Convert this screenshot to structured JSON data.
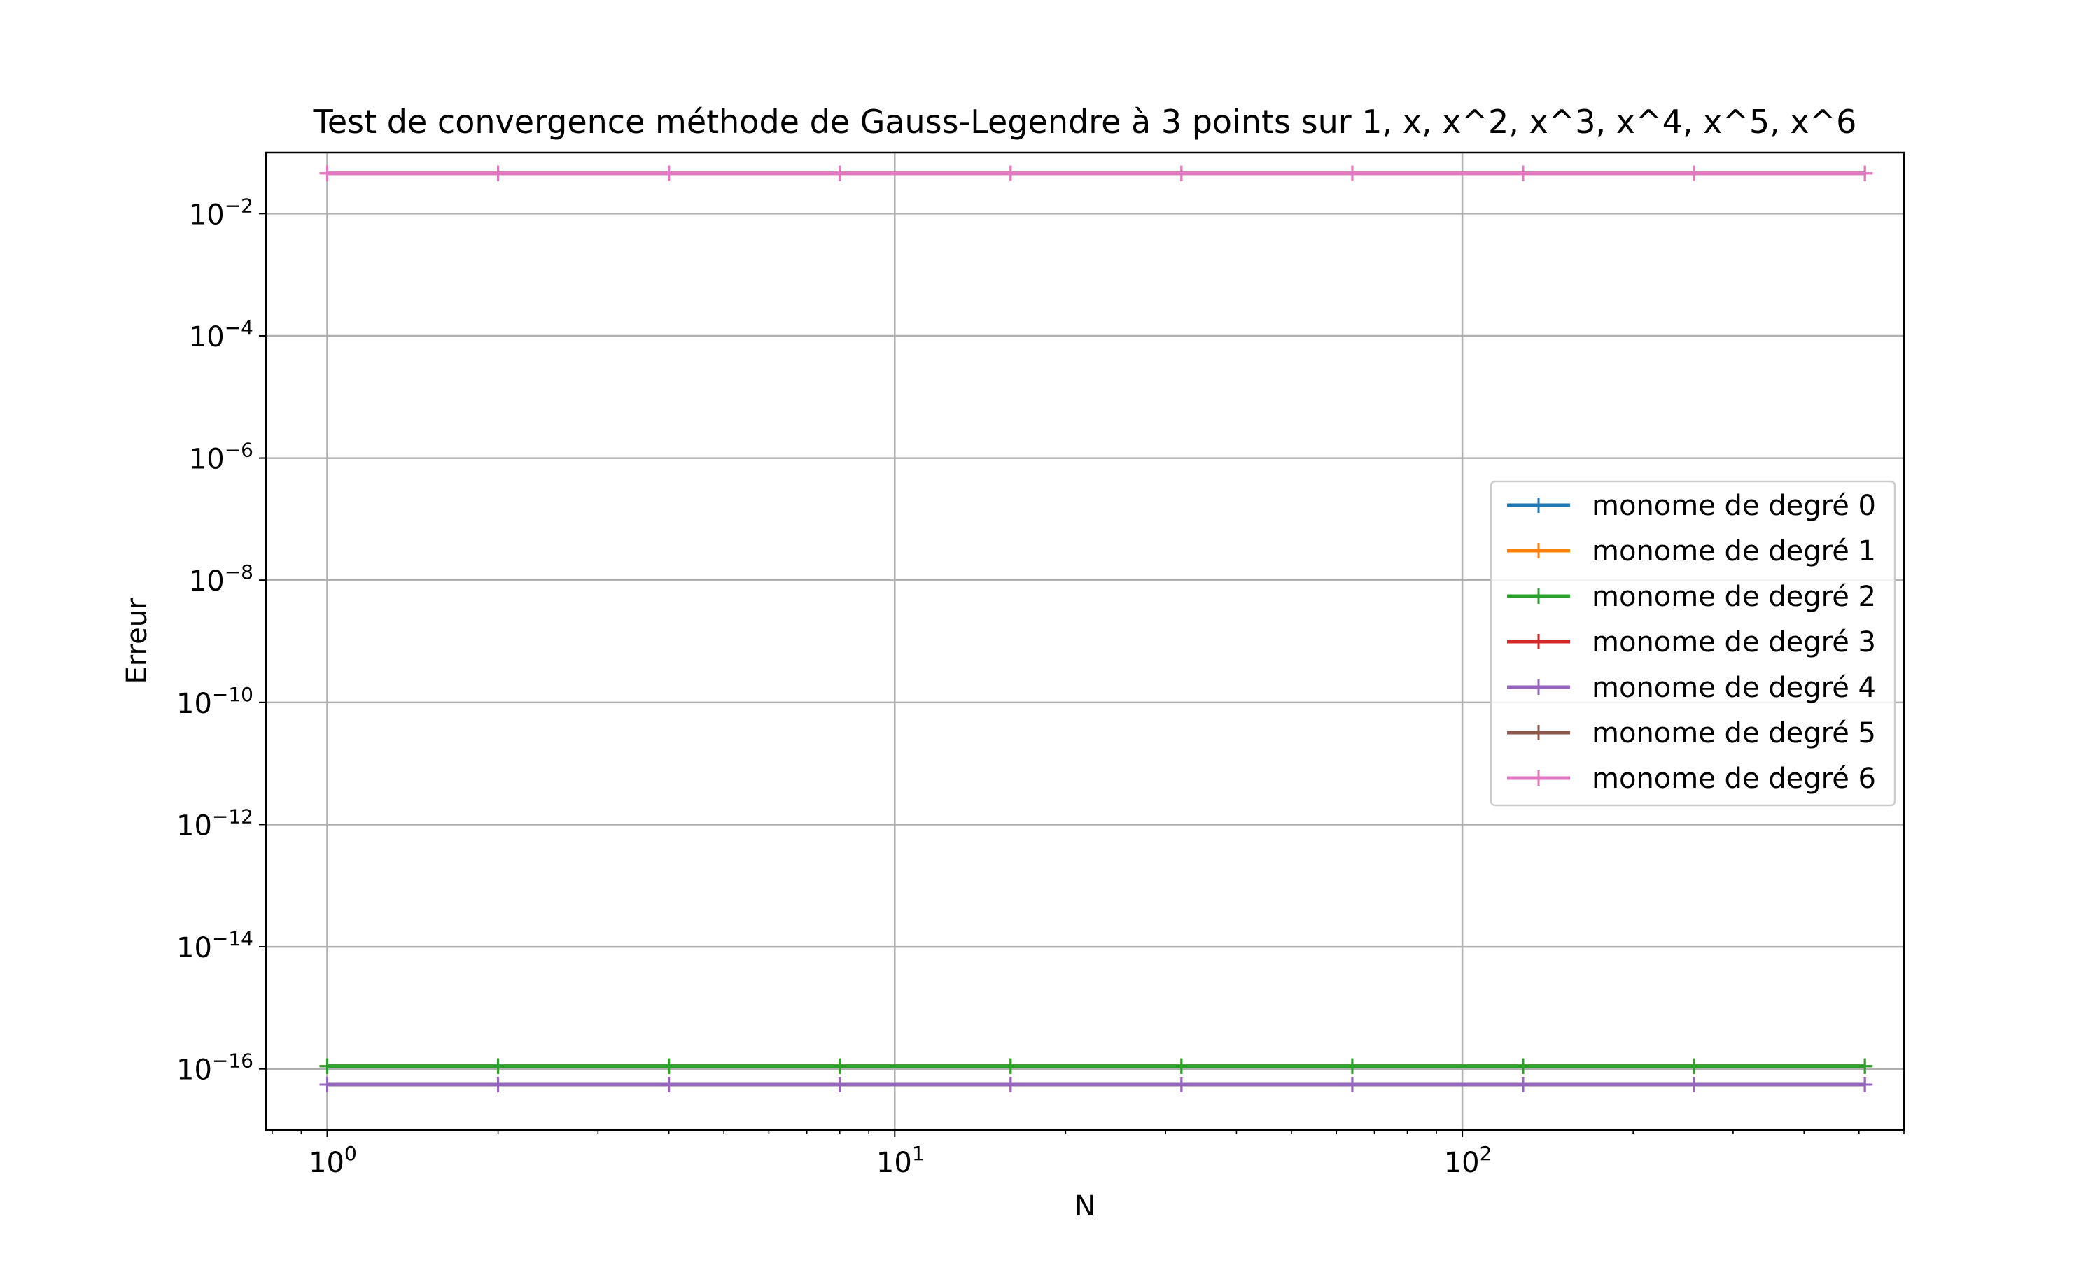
{
  "chart_data": {
    "type": "line",
    "title": "Test de convergence méthode de Gauss-Legendre à 3 points sur 1, x, x^2, x^3, x^4, x^5, x^6",
    "xlabel": "N",
    "ylabel": "Erreur",
    "xscale": "log",
    "yscale": "log",
    "xlim": [
      0.78,
      600
    ],
    "ylim": [
      1e-17,
      0.1
    ],
    "grid": true,
    "legend_position": "center-right",
    "marker": "+",
    "x": [
      1,
      2,
      4,
      8,
      16,
      32,
      64,
      128,
      256,
      512
    ],
    "x_ticks": [
      {
        "value": 1,
        "base": "10",
        "exp": "0"
      },
      {
        "value": 10,
        "base": "10",
        "exp": "1"
      },
      {
        "value": 100,
        "base": "10",
        "exp": "2"
      }
    ],
    "y_ticks": [
      {
        "value": 0.01,
        "base": "10",
        "exp": "−2"
      },
      {
        "value": 0.0001,
        "base": "10",
        "exp": "−4"
      },
      {
        "value": 1e-06,
        "base": "10",
        "exp": "−6"
      },
      {
        "value": 1e-08,
        "base": "10",
        "exp": "−8"
      },
      {
        "value": 1e-10,
        "base": "10",
        "exp": "−10"
      },
      {
        "value": 1e-12,
        "base": "10",
        "exp": "−12"
      },
      {
        "value": 1e-14,
        "base": "10",
        "exp": "−14"
      },
      {
        "value": 1e-16,
        "base": "10",
        "exp": "−16"
      }
    ],
    "series": [
      {
        "name": "monome de degré 0",
        "color": "#1f77b4",
        "values": [
          1.11e-16,
          1.11e-16,
          1.11e-16,
          1.11e-16,
          1.11e-16,
          1.11e-16,
          1.11e-16,
          1.11e-16,
          1.11e-16,
          1.11e-16
        ]
      },
      {
        "name": "monome de degré 1",
        "color": "#ff7f0e",
        "values": [
          1.11e-16,
          1.11e-16,
          1.11e-16,
          1.11e-16,
          1.11e-16,
          1.11e-16,
          1.11e-16,
          1.11e-16,
          1.11e-16,
          1.11e-16
        ]
      },
      {
        "name": "monome de degré 2",
        "color": "#2ca02c",
        "values": [
          1.11e-16,
          1.11e-16,
          1.11e-16,
          1.11e-16,
          1.11e-16,
          1.11e-16,
          1.11e-16,
          1.11e-16,
          1.11e-16,
          1.11e-16
        ]
      },
      {
        "name": "monome de degré 3",
        "color": "#d62728",
        "values": [
          5.55e-17,
          5.55e-17,
          5.55e-17,
          5.55e-17,
          5.55e-17,
          5.55e-17,
          5.55e-17,
          5.55e-17,
          5.55e-17,
          5.55e-17
        ]
      },
      {
        "name": "monome de degré 4",
        "color": "#9467bd",
        "values": [
          5.55e-17,
          5.55e-17,
          5.55e-17,
          5.55e-17,
          5.55e-17,
          5.55e-17,
          5.55e-17,
          5.55e-17,
          5.55e-17,
          5.55e-17
        ]
      },
      {
        "name": "monome de degré 5",
        "color": "#8c564b",
        "values": [
          0.0457,
          0.0457,
          0.0457,
          0.0457,
          0.0457,
          0.0457,
          0.0457,
          0.0457,
          0.0457,
          0.0457
        ]
      },
      {
        "name": "monome de degré 6",
        "color": "#e377c2",
        "values": [
          0.0457,
          0.0457,
          0.0457,
          0.0457,
          0.0457,
          0.0457,
          0.0457,
          0.0457,
          0.0457,
          0.0457
        ]
      }
    ]
  }
}
